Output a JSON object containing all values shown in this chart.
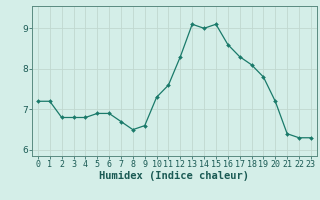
{
  "x": [
    0,
    1,
    2,
    3,
    4,
    5,
    6,
    7,
    8,
    9,
    10,
    11,
    12,
    13,
    14,
    15,
    16,
    17,
    18,
    19,
    20,
    21,
    22,
    23
  ],
  "y": [
    7.2,
    7.2,
    6.8,
    6.8,
    6.8,
    6.9,
    6.9,
    6.7,
    6.5,
    6.6,
    7.3,
    7.6,
    8.3,
    9.1,
    9.0,
    9.1,
    8.6,
    8.3,
    8.1,
    7.8,
    7.2,
    6.4,
    6.3,
    6.3
  ],
  "title": "",
  "xlabel": "Humidex (Indice chaleur)",
  "ylabel": "",
  "xlim": [
    -0.5,
    23.5
  ],
  "ylim": [
    5.85,
    9.55
  ],
  "yticks": [
    6,
    7,
    8,
    9
  ],
  "xticks": [
    0,
    1,
    2,
    3,
    4,
    5,
    6,
    7,
    8,
    9,
    10,
    11,
    12,
    13,
    14,
    15,
    16,
    17,
    18,
    19,
    20,
    21,
    22,
    23
  ],
  "line_color": "#1a7a6a",
  "marker_color": "#1a7a6a",
  "bg_color": "#d4eee8",
  "grid_color": "#c0d8d0",
  "axis_color": "#5a8a80",
  "tick_color": "#1a5a54",
  "label_fontsize": 6,
  "xlabel_fontsize": 7.5
}
